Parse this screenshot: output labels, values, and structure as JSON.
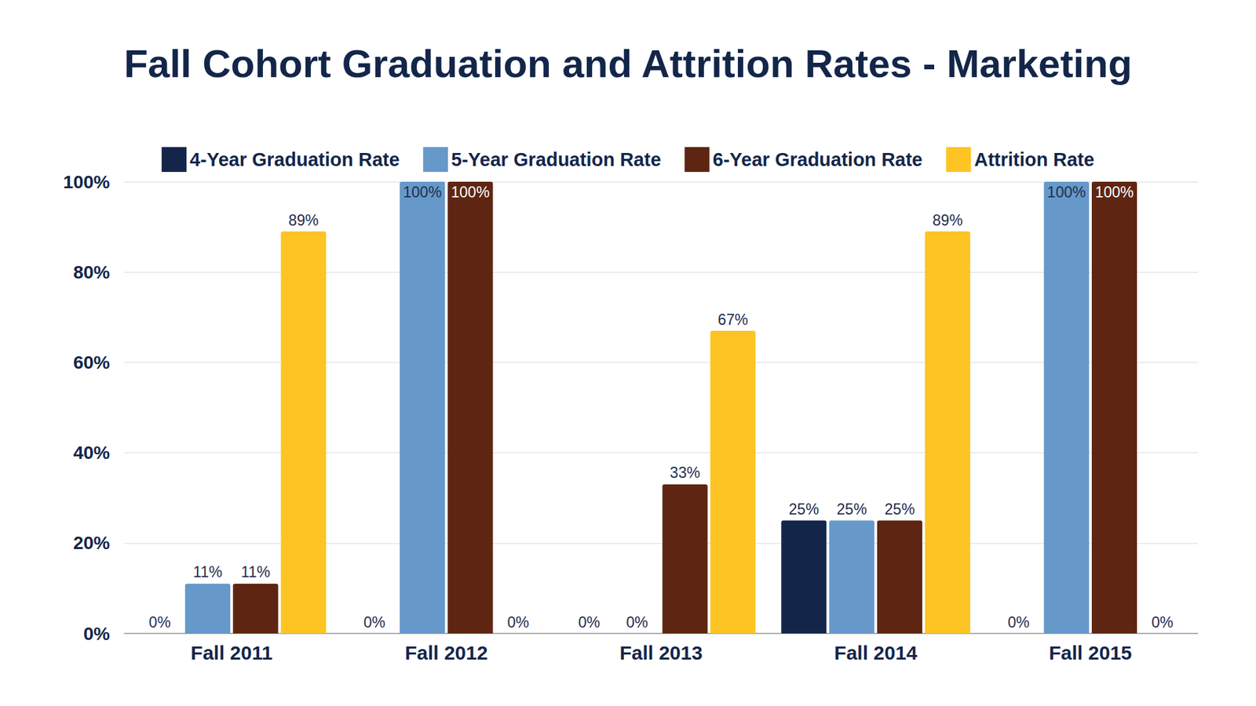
{
  "chart_data": {
    "type": "bar",
    "title": "Fall Cohort Graduation and Attrition Rates - Marketing",
    "categories": [
      "Fall 2011",
      "Fall 2012",
      "Fall 2013",
      "Fall 2014",
      "Fall 2015"
    ],
    "series": [
      {
        "name": "4-Year Graduation Rate",
        "color": "#13264a",
        "values": [
          0,
          0,
          0,
          25,
          0
        ],
        "value_labels": [
          "0%",
          "0%",
          "0%",
          "25%",
          "0%"
        ]
      },
      {
        "name": "5-Year Graduation Rate",
        "color": "#6699c9",
        "values": [
          11,
          100,
          0,
          25,
          100
        ],
        "value_labels": [
          "11%",
          "100%",
          "0%",
          "25%",
          "100%"
        ]
      },
      {
        "name": "6-Year Graduation Rate",
        "color": "#5e2612",
        "values": [
          11,
          100,
          33,
          25,
          100
        ],
        "value_labels": [
          "11%",
          "100%",
          "33%",
          "25%",
          "100%"
        ]
      },
      {
        "name": "Attrition Rate",
        "color": "#fdc424",
        "values": [
          89,
          0,
          67,
          89,
          0
        ],
        "value_labels": [
          "89%",
          "0%",
          "67%",
          "89%",
          "0%"
        ]
      }
    ],
    "ylim": [
      0,
      100
    ],
    "yticks": [
      {
        "value": 0,
        "label": "0%"
      },
      {
        "value": 20,
        "label": "20%"
      },
      {
        "value": 40,
        "label": "40%"
      },
      {
        "value": 60,
        "label": "60%"
      },
      {
        "value": 80,
        "label": "80%"
      },
      {
        "value": 100,
        "label": "100%"
      }
    ],
    "grid": true,
    "legend": "top",
    "data_labels": true
  }
}
